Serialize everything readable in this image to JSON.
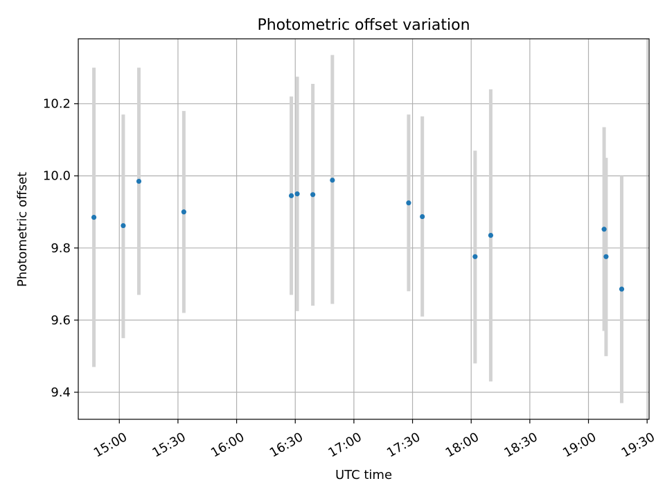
{
  "chart_data": {
    "type": "scatter",
    "title": "Photometric offset variation",
    "xlabel": "UTC time",
    "ylabel": "Photometric offset",
    "x_ticks": [
      "15:00",
      "15:30",
      "16:00",
      "16:30",
      "17:00",
      "17:30",
      "18:00",
      "18:30",
      "19:00",
      "19:30"
    ],
    "y_ticks": [
      "9.4",
      "9.6",
      "9.8",
      "10.0",
      "10.2"
    ],
    "y_tick_values": [
      9.4,
      9.6,
      9.8,
      10.0,
      10.2
    ],
    "xlim": [
      "14:39",
      "19:31"
    ],
    "ylim": [
      9.325,
      10.38
    ],
    "grid": true,
    "series": [
      {
        "marker_color": "#1f77b4",
        "errorbar_color": "#d3d3d3",
        "points": [
          {
            "x": "14:47",
            "y": 9.885,
            "low": 9.47,
            "high": 10.3
          },
          {
            "x": "15:02",
            "y": 9.862,
            "low": 9.55,
            "high": 10.17
          },
          {
            "x": "15:10",
            "y": 9.985,
            "low": 9.67,
            "high": 10.3
          },
          {
            "x": "15:33",
            "y": 9.9,
            "low": 9.62,
            "high": 10.18
          },
          {
            "x": "16:28",
            "y": 9.945,
            "low": 9.67,
            "high": 10.22
          },
          {
            "x": "16:31",
            "y": 9.95,
            "low": 9.625,
            "high": 10.275
          },
          {
            "x": "16:39",
            "y": 9.948,
            "low": 9.64,
            "high": 10.255
          },
          {
            "x": "16:49",
            "y": 9.988,
            "low": 9.645,
            "high": 10.335
          },
          {
            "x": "17:28",
            "y": 9.925,
            "low": 9.68,
            "high": 10.17
          },
          {
            "x": "17:35",
            "y": 9.887,
            "low": 9.61,
            "high": 10.165
          },
          {
            "x": "18:02",
            "y": 9.776,
            "low": 9.48,
            "high": 10.07
          },
          {
            "x": "18:10",
            "y": 9.835,
            "low": 9.43,
            "high": 10.24
          },
          {
            "x": "19:08",
            "y": 9.852,
            "low": 9.57,
            "high": 10.135
          },
          {
            "x": "19:09",
            "y": 9.776,
            "low": 9.5,
            "high": 10.05
          },
          {
            "x": "19:17",
            "y": 9.686,
            "low": 9.37,
            "high": 10.0
          }
        ]
      }
    ]
  }
}
